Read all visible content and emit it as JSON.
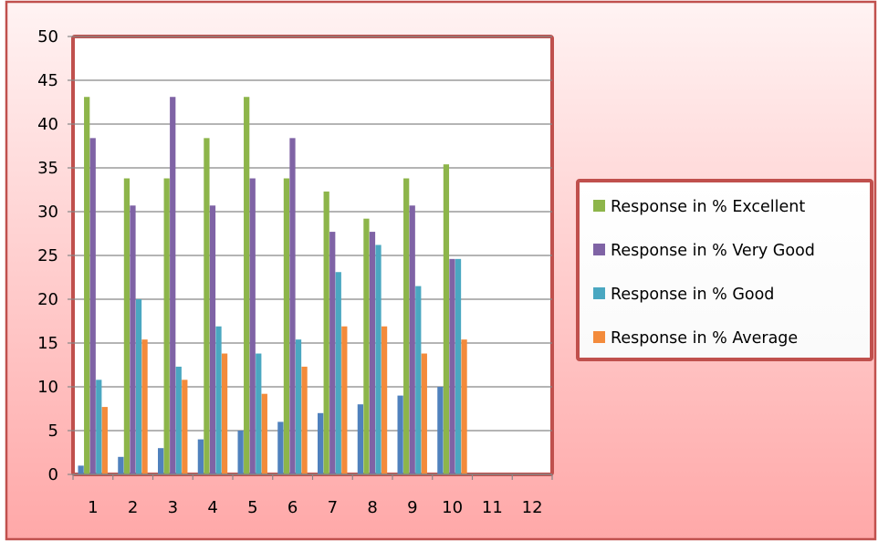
{
  "chart_data": {
    "type": "bar",
    "categories": [
      "1",
      "2",
      "3",
      "4",
      "5",
      "6",
      "7",
      "8",
      "9",
      "10",
      "11",
      "12"
    ],
    "ylim": [
      0,
      50
    ],
    "yticks": [
      "0",
      "5",
      "10",
      "15",
      "20",
      "25",
      "30",
      "35",
      "40",
      "45",
      "50"
    ],
    "grid": true,
    "legend_position": "right",
    "series": [
      {
        "values": [
          1,
          2,
          3,
          4,
          5,
          6,
          7,
          8,
          9,
          10,
          0,
          0
        ],
        "color": "#4f81bd"
      },
      {
        "name": "Response in % Excellent",
        "values": [
          43.1,
          33.8,
          33.8,
          38.4,
          43.1,
          33.8,
          32.3,
          29.2,
          33.8,
          35.4,
          0,
          0
        ],
        "color": "#8db54a"
      },
      {
        "name": "Response in % Very Good",
        "values": [
          38.4,
          30.7,
          43.1,
          30.7,
          33.8,
          38.4,
          27.7,
          27.7,
          30.7,
          24.6,
          0,
          0
        ],
        "color": "#7f63a5"
      },
      {
        "name": "Response in % Good",
        "values": [
          10.8,
          20.0,
          12.3,
          16.9,
          13.8,
          15.4,
          23.1,
          26.2,
          21.5,
          24.6,
          0,
          0
        ],
        "color": "#4aa7c1"
      },
      {
        "name": "Response in % Average",
        "values": [
          7.7,
          15.4,
          10.8,
          13.8,
          9.2,
          12.3,
          16.9,
          16.9,
          13.8,
          15.4,
          0,
          0
        ],
        "color": "#f38b3b"
      }
    ]
  }
}
